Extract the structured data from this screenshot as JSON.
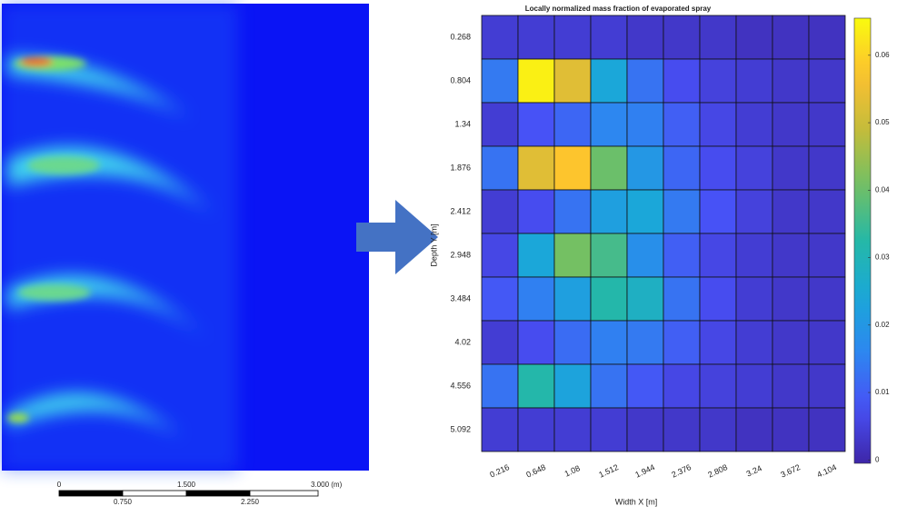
{
  "scale_bar": {
    "labels": [
      "0",
      "1.500",
      "3.000 (m)",
      "0.750",
      "2.250"
    ]
  },
  "chart_data": {
    "type": "heatmap",
    "title": "Locally normalized mass fraction of evaporated spray",
    "xlabel": "Width X [m]",
    "ylabel": "Depth Y [m]",
    "x": [
      0.216,
      0.648,
      1.08,
      1.512,
      1.944,
      2.376,
      2.808,
      3.24,
      3.672,
      4.104
    ],
    "y": [
      0.268,
      0.804,
      1.34,
      1.876,
      2.412,
      2.948,
      3.484,
      4.02,
      4.556,
      5.092
    ],
    "values": [
      [
        0.004,
        0.004,
        0.004,
        0.004,
        0.003,
        0.003,
        0.003,
        0.002,
        0.002,
        0.002
      ],
      [
        0.014,
        0.064,
        0.053,
        0.024,
        0.013,
        0.007,
        0.005,
        0.004,
        0.003,
        0.003
      ],
      [
        0.004,
        0.008,
        0.011,
        0.016,
        0.015,
        0.01,
        0.006,
        0.004,
        0.003,
        0.003
      ],
      [
        0.013,
        0.053,
        0.058,
        0.04,
        0.02,
        0.011,
        0.007,
        0.005,
        0.003,
        0.003
      ],
      [
        0.004,
        0.007,
        0.013,
        0.022,
        0.024,
        0.014,
        0.008,
        0.005,
        0.003,
        0.003
      ],
      [
        0.006,
        0.024,
        0.041,
        0.036,
        0.018,
        0.01,
        0.006,
        0.004,
        0.003,
        0.003
      ],
      [
        0.009,
        0.015,
        0.022,
        0.032,
        0.028,
        0.013,
        0.007,
        0.004,
        0.003,
        0.003
      ],
      [
        0.004,
        0.007,
        0.012,
        0.015,
        0.014,
        0.01,
        0.006,
        0.004,
        0.003,
        0.003
      ],
      [
        0.013,
        0.032,
        0.023,
        0.013,
        0.009,
        0.006,
        0.005,
        0.004,
        0.003,
        0.003
      ],
      [
        0.004,
        0.004,
        0.004,
        0.004,
        0.003,
        0.003,
        0.003,
        0.002,
        0.002,
        0.002
      ]
    ],
    "colormap": "parula",
    "zlim": [
      -0.0005,
      0.0655
    ],
    "zticks": [
      0,
      0.01,
      0.02,
      0.03,
      0.04,
      0.05,
      0.06
    ]
  }
}
